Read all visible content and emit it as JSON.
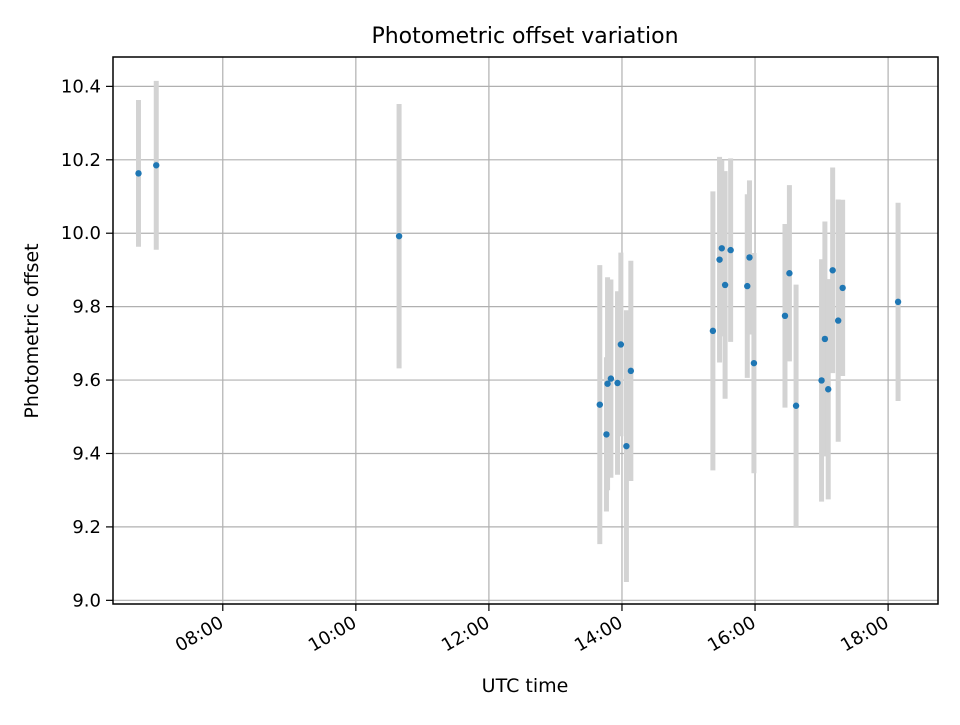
{
  "chart_data": {
    "type": "scatter",
    "title": "Photometric offset variation",
    "xlabel": "UTC time",
    "ylabel": "Photometric offset",
    "x_unit": "UTC time (HH:MM)",
    "xlim": [
      "06:21",
      "18:45"
    ],
    "ylim": [
      8.99,
      10.48
    ],
    "x_ticks": [
      "08:00",
      "10:00",
      "12:00",
      "14:00",
      "16:00",
      "18:00"
    ],
    "y_ticks": [
      9.0,
      9.2,
      9.4,
      9.6,
      9.8,
      10.0,
      10.2,
      10.4
    ],
    "grid": true,
    "legend": "none",
    "marker_color": "#1f77b4",
    "errorbar_color": "#d3d3d3",
    "points": [
      {
        "x": "06:44",
        "y": 10.163,
        "yerr": 0.2
      },
      {
        "x": "07:00",
        "y": 10.185,
        "yerr": 0.23
      },
      {
        "x": "10:39",
        "y": 9.992,
        "yerr": 0.36
      },
      {
        "x": "13:40",
        "y": 9.533,
        "yerr": 0.38
      },
      {
        "x": "13:46",
        "y": 9.452,
        "yerr": 0.21
      },
      {
        "x": "13:47",
        "y": 9.59,
        "yerr": 0.29
      },
      {
        "x": "13:50",
        "y": 9.604,
        "yerr": 0.27
      },
      {
        "x": "13:56",
        "y": 9.592,
        "yerr": 0.25
      },
      {
        "x": "13:59",
        "y": 9.697,
        "yerr": 0.25
      },
      {
        "x": "14:04",
        "y": 9.42,
        "yerr": 0.37
      },
      {
        "x": "14:08",
        "y": 9.625,
        "yerr": 0.3
      },
      {
        "x": "15:22",
        "y": 9.734,
        "yerr": 0.38
      },
      {
        "x": "15:28",
        "y": 9.928,
        "yerr": 0.28
      },
      {
        "x": "15:30",
        "y": 9.959,
        "yerr": 0.24
      },
      {
        "x": "15:33",
        "y": 9.859,
        "yerr": 0.31
      },
      {
        "x": "15:38",
        "y": 9.954,
        "yerr": 0.25
      },
      {
        "x": "15:53",
        "y": 9.856,
        "yerr": 0.25
      },
      {
        "x": "15:55",
        "y": 9.934,
        "yerr": 0.21
      },
      {
        "x": "15:59",
        "y": 9.646,
        "yerr": 0.3
      },
      {
        "x": "16:27",
        "y": 9.775,
        "yerr": 0.25
      },
      {
        "x": "16:31",
        "y": 9.891,
        "yerr": 0.24
      },
      {
        "x": "16:37",
        "y": 9.53,
        "yerr": 0.33
      },
      {
        "x": "17:00",
        "y": 9.599,
        "yerr": 0.33
      },
      {
        "x": "17:03",
        "y": 9.712,
        "yerr": 0.32
      },
      {
        "x": "17:06",
        "y": 9.575,
        "yerr": 0.3
      },
      {
        "x": "17:10",
        "y": 9.899,
        "yerr": 0.28
      },
      {
        "x": "17:15",
        "y": 9.762,
        "yerr": 0.33
      },
      {
        "x": "17:19",
        "y": 9.851,
        "yerr": 0.24
      },
      {
        "x": "18:09",
        "y": 9.813,
        "yerr": 0.27
      }
    ]
  }
}
